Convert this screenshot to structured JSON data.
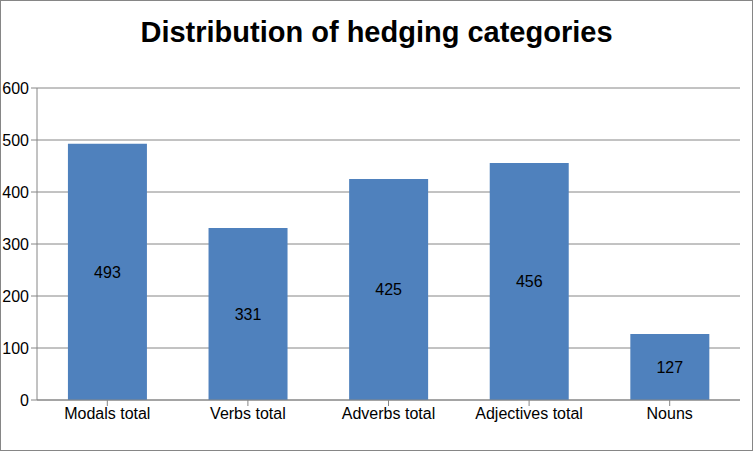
{
  "chart_data": {
    "type": "bar",
    "title": "Distribution of hedging categories",
    "categories": [
      "Modals total",
      "Verbs total",
      "Adverbs total",
      "Adjectives total",
      "Nouns"
    ],
    "values": [
      493,
      331,
      425,
      456,
      127
    ],
    "color": "#4f81bd",
    "ylim": [
      0,
      600
    ],
    "yticks": [
      0,
      100,
      200,
      300,
      400,
      500,
      600
    ],
    "grid": true,
    "data_labels": true
  }
}
